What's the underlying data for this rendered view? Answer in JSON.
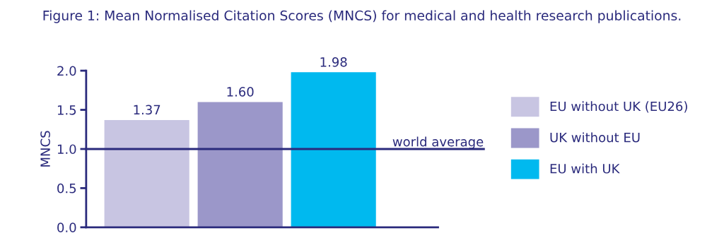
{
  "chart_data": {
    "type": "bar",
    "title": "Figure 1: Mean Normalised Citation Scores (MNCS) for medical and health research publications.",
    "ylabel": "MNCS",
    "categories": [
      null,
      null,
      null
    ],
    "stacked": true,
    "series": [
      {
        "name": "EU without UK (EU26)",
        "color": "#c8c5e2",
        "values": [
          1.37,
          null,
          null
        ],
        "value_labels": [
          "1.37",
          null,
          null
        ]
      },
      {
        "name": "UK without EU",
        "color": "#9b97c9",
        "values": [
          null,
          1.6,
          null
        ],
        "value_labels": [
          null,
          "1.60",
          null
        ]
      },
      {
        "name": "EU with UK",
        "color": "#00b9ef",
        "values": [
          null,
          null,
          1.98
        ],
        "value_labels": [
          null,
          null,
          "1.98"
        ]
      }
    ],
    "ylim": [
      0,
      2.0
    ],
    "yticks": [
      {
        "value": 0,
        "label": "0.0"
      },
      {
        "value": 0.5,
        "label": "0.5"
      },
      {
        "value": 1.0,
        "label": "1.0"
      },
      {
        "value": 1.5,
        "label": "1.5"
      },
      {
        "value": 2.0,
        "label": "2.0"
      }
    ],
    "ref_lines": [
      {
        "axis": "y",
        "value": 1.0,
        "label": "world average",
        "color": "#2a2a7c"
      }
    ],
    "legend": "right",
    "grid": false
  }
}
